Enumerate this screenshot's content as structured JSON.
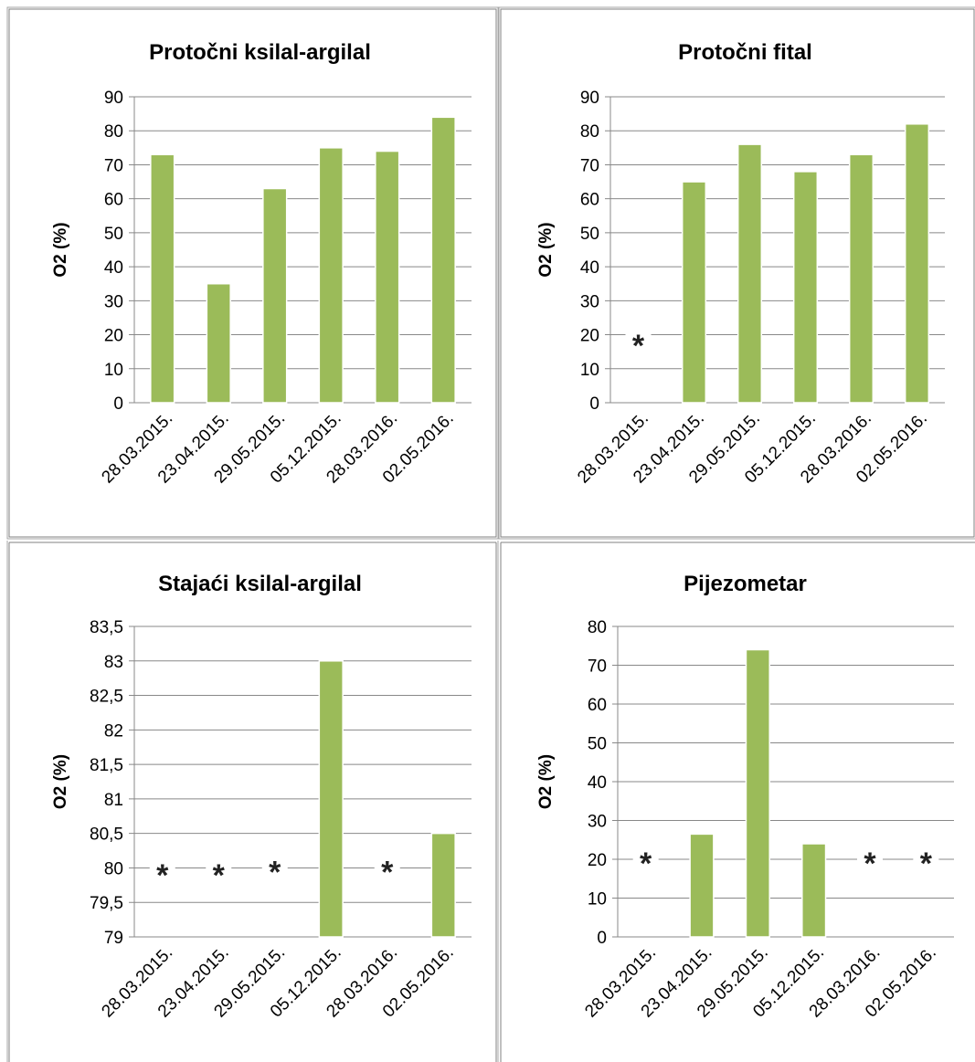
{
  "chart_data": [
    {
      "type": "bar",
      "title": "Protočni ksilal-argilal",
      "ylabel": "O2 (%)",
      "categories": [
        "28.03.2015.",
        "23.04.2015.",
        "29.05.2015.",
        "05.12.2015.",
        "28.03.2016.",
        "02.05.2016."
      ],
      "values": [
        73,
        35,
        63,
        75,
        74,
        84
      ],
      "missing_marker": "*",
      "ylim": [
        0,
        90
      ],
      "yticks": [
        "0",
        "10",
        "20",
        "30",
        "40",
        "50",
        "60",
        "70",
        "80",
        "90"
      ],
      "grid": true,
      "legend": "none",
      "bar_color": "#9bbb59"
    },
    {
      "type": "bar",
      "title": "Protočni fital",
      "ylabel": "O2 (%)",
      "categories": [
        "28.03.2015.",
        "23.04.2015.",
        "29.05.2015.",
        "05.12.2015.",
        "28.03.2016.",
        "02.05.2016."
      ],
      "values": [
        null,
        65,
        76,
        68,
        73,
        82
      ],
      "missing_marker": "*",
      "ylim": [
        0,
        90
      ],
      "yticks": [
        "0",
        "10",
        "20",
        "30",
        "40",
        "50",
        "60",
        "70",
        "80",
        "90"
      ],
      "grid": true,
      "legend": "none",
      "bar_color": "#9bbb59"
    },
    {
      "type": "bar",
      "title": "Stajaći ksilal-argilal",
      "ylabel": "O2 (%)",
      "categories": [
        "28.03.2015.",
        "23.04.2015.",
        "29.05.2015.",
        "05.12.2015.",
        "28.03.2016.",
        "02.05.2016."
      ],
      "values": [
        null,
        null,
        null,
        83,
        null,
        80.5
      ],
      "missing_marker": "*",
      "ylim": [
        79,
        83.5
      ],
      "yticks": [
        "79",
        "79,5",
        "80",
        "80,5",
        "81",
        "81,5",
        "82",
        "82,5",
        "83",
        "83,5"
      ],
      "grid": true,
      "legend": "none",
      "bar_color": "#9bbb59"
    },
    {
      "type": "bar",
      "title": "Pijezometar",
      "ylabel": "O2 (%)",
      "categories": [
        "28.03.2015.",
        "23.04.2015.",
        "29.05.2015.",
        "05.12.2015.",
        "28.03.2016.",
        "02.05.2016."
      ],
      "values": [
        null,
        26.5,
        74,
        24,
        null,
        null
      ],
      "missing_marker": "*",
      "ylim": [
        0,
        80
      ],
      "yticks": [
        "0",
        "10",
        "20",
        "30",
        "40",
        "50",
        "60",
        "70",
        "80"
      ],
      "grid": true,
      "legend": "none",
      "bar_color": "#9bbb59"
    }
  ]
}
